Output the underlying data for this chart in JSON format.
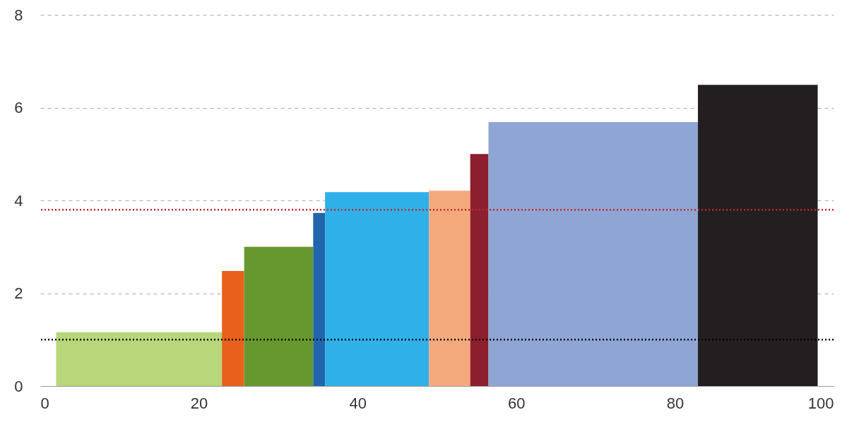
{
  "chart_data": {
    "type": "histogram",
    "bins": [
      2,
      22.9,
      25.7,
      34.4,
      35.9,
      49.0,
      54.2,
      56.5,
      82.9,
      98.0
    ],
    "values": [
      1.16,
      2.48,
      3.0,
      3.73,
      4.18,
      4.21,
      5.0,
      5.69,
      6.49
    ],
    "colors": [
      "#b8d67a",
      "#e8601c",
      "#67972f",
      "#2166ac",
      "#30b0e8",
      "#f4a97c",
      "#8b1f2e",
      "#8fa5d4",
      "#231f20"
    ],
    "xlim": [
      0,
      100
    ],
    "xticks": [
      0,
      20,
      40,
      60,
      80,
      100
    ],
    "ylim": [
      0,
      8
    ],
    "yticks": [
      0,
      2,
      4,
      6,
      8
    ],
    "grid": "y",
    "ref_lines": [
      {
        "axis": "y",
        "value": 3.8,
        "color": "#c0282d",
        "line_style": "dotted"
      },
      {
        "axis": "y",
        "value": 1.0,
        "color": "#000000",
        "line_style": "dotted"
      }
    ]
  }
}
